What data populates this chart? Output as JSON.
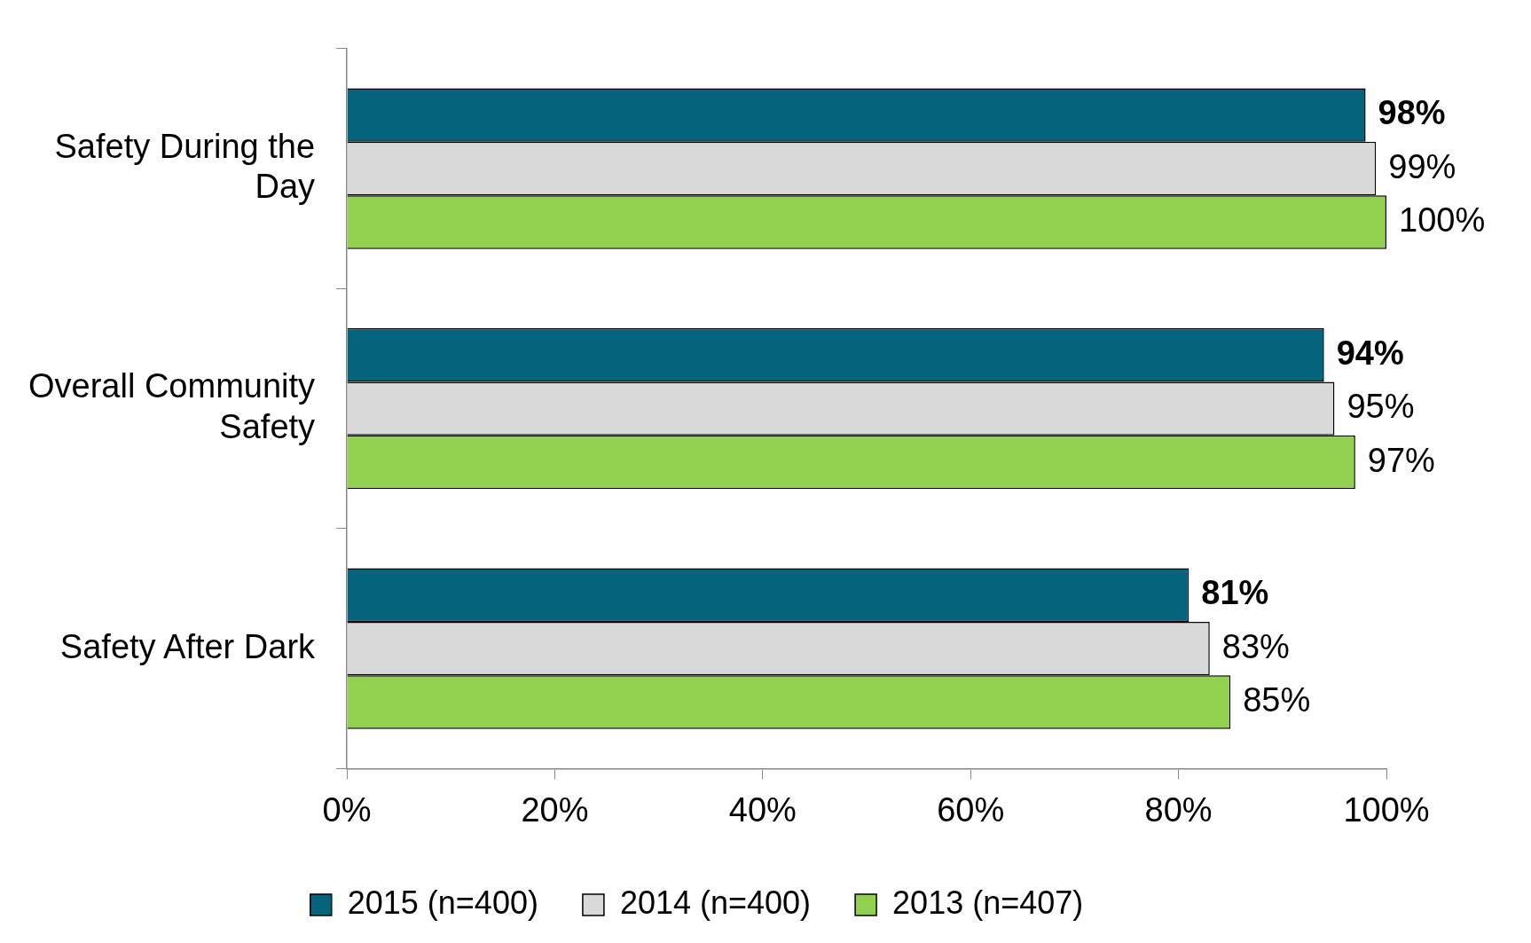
{
  "chart_data": {
    "type": "bar",
    "orientation": "horizontal",
    "categories": [
      "Safety During the Day",
      "Overall Community Safety",
      "Safety After Dark"
    ],
    "series": [
      {
        "name": "2015 (n=400)",
        "color": "#05637b",
        "values": [
          98,
          94,
          81
        ],
        "value_labels": [
          "98%",
          "94%",
          "81%"
        ]
      },
      {
        "name": "2014 (n=400)",
        "color": "#d9d9d9",
        "values": [
          99,
          95,
          83
        ],
        "value_labels": [
          "99%",
          "95%",
          "83%"
        ]
      },
      {
        "name": "2013 (n=407)",
        "color": "#92d050",
        "values": [
          100,
          97,
          85
        ],
        "value_labels": [
          "100%",
          "97%",
          "85%"
        ]
      }
    ],
    "xlim": [
      0,
      100
    ],
    "xticks": [
      {
        "value": 0,
        "label": "0%"
      },
      {
        "value": 20,
        "label": "20%"
      },
      {
        "value": 40,
        "label": "40%"
      },
      {
        "value": 60,
        "label": "60%"
      },
      {
        "value": 80,
        "label": "80%"
      },
      {
        "value": 100,
        "label": "100%"
      }
    ],
    "grid": false,
    "legend": "bottom"
  }
}
